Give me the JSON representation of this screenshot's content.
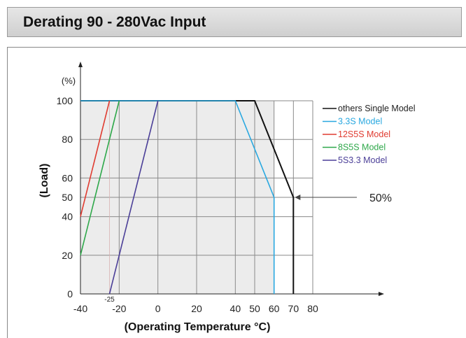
{
  "header": {
    "title": "Derating 90 - 280Vac Input"
  },
  "chart_data": {
    "type": "line",
    "xlabel": "(Operating Temperature °C)",
    "ylabel": "(Load)",
    "yunit": "(%)",
    "xlim": [
      -40,
      80
    ],
    "ylim": [
      0,
      100
    ],
    "x_ticks": [
      -40,
      -20,
      0,
      20,
      40,
      50,
      60,
      70,
      80
    ],
    "y_ticks": [
      0,
      20,
      40,
      50,
      60,
      80,
      100
    ],
    "x_extra_tick": "-25",
    "grid": true,
    "legend_position": "top-right",
    "annotation": "50%",
    "series": [
      {
        "name": "others Single Model",
        "color": "#111111",
        "points": [
          [
            -40,
            100
          ],
          [
            50,
            100
          ],
          [
            70,
            50
          ],
          [
            70,
            0
          ]
        ]
      },
      {
        "name": "3.3S Model",
        "color": "#29a8e0",
        "points": [
          [
            -40,
            100
          ],
          [
            40,
            100
          ],
          [
            60,
            50
          ],
          [
            60,
            0
          ]
        ]
      },
      {
        "name": "12S5S Model",
        "color": "#e03c31",
        "points": [
          [
            -40,
            40
          ],
          [
            -25,
            100
          ]
        ]
      },
      {
        "name": "8S5S Model",
        "color": "#2ea84a",
        "points": [
          [
            -40,
            20
          ],
          [
            -20,
            100
          ]
        ]
      },
      {
        "name": "5S3.3 Model",
        "color": "#4b3f98",
        "points": [
          [
            -25,
            0
          ],
          [
            0,
            100
          ]
        ]
      }
    ]
  }
}
